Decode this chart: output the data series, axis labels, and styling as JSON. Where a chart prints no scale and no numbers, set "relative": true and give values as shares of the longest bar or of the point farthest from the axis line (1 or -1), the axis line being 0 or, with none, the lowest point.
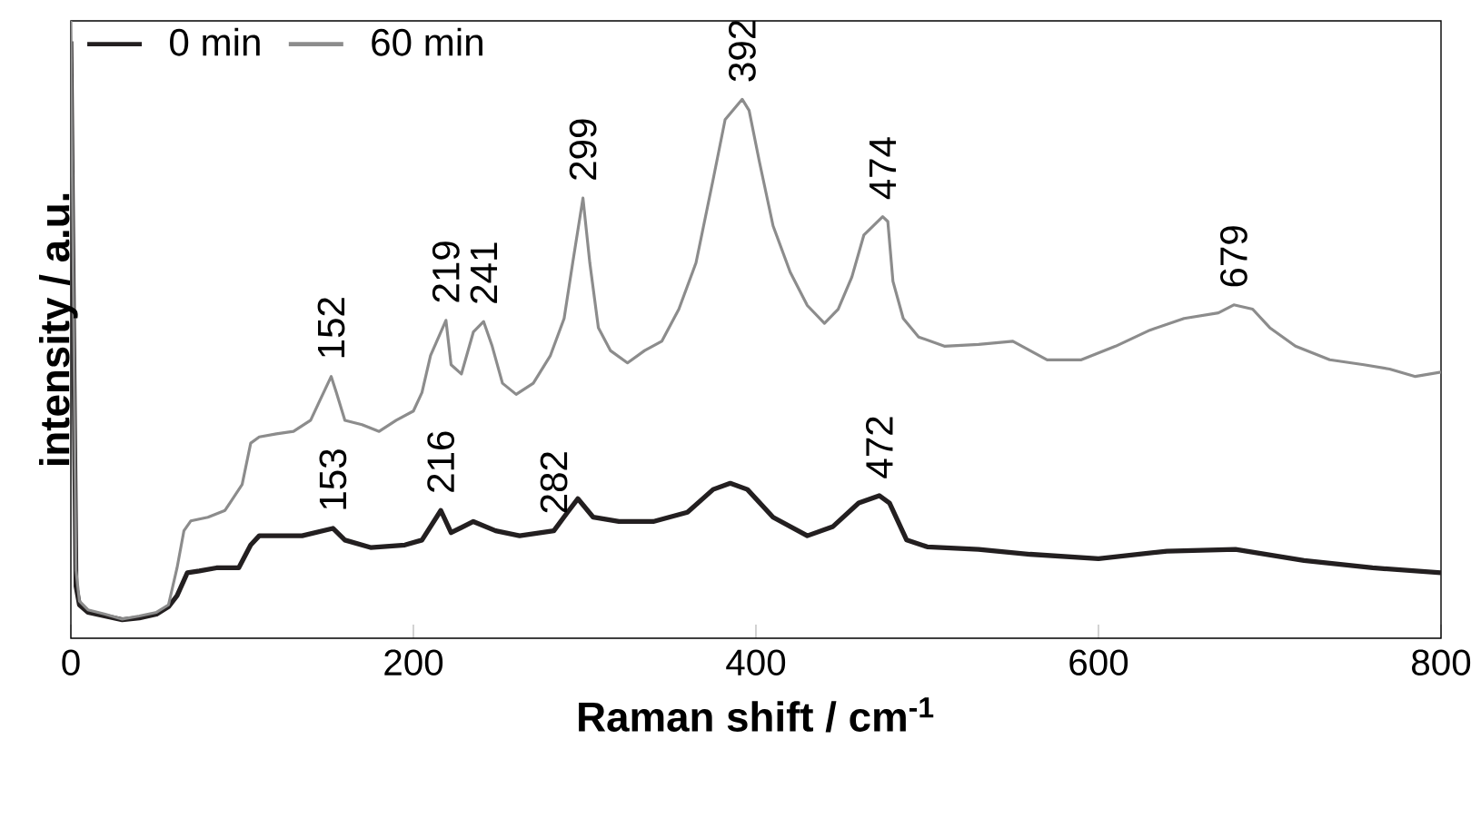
{
  "chart_data": {
    "type": "line",
    "relative": true,
    "xlabel": "Raman shift / cm$^{-1}$",
    "ylabel": "intensity / a.u.",
    "xlim": [
      0,
      800
    ],
    "xticks": [
      0,
      200,
      400,
      600,
      800
    ],
    "legend": "top left",
    "grid": false,
    "series": [
      {
        "name": "0 min",
        "color": "#231f20",
        "x": [
          0,
          3,
          5,
          10,
          20,
          30,
          40,
          50,
          57,
          62,
          68,
          75,
          85,
          98,
          105,
          110,
          120,
          135,
          153,
          160,
          175,
          195,
          205,
          216,
          222,
          235,
          248,
          262,
          282,
          290,
          296,
          305,
          320,
          340,
          360,
          375,
          385,
          395,
          410,
          430,
          445,
          460,
          472,
          478,
          488,
          500,
          530,
          560,
          600,
          640,
          680,
          720,
          760,
          800
        ],
        "values": [
          0.967,
          0.084,
          0.054,
          0.042,
          0.036,
          0.03,
          0.033,
          0.039,
          0.051,
          0.069,
          0.106,
          0.109,
          0.114,
          0.114,
          0.151,
          0.166,
          0.166,
          0.166,
          0.178,
          0.159,
          0.147,
          0.151,
          0.159,
          0.207,
          0.171,
          0.189,
          0.174,
          0.166,
          0.174,
          0.204,
          0.226,
          0.196,
          0.189,
          0.189,
          0.204,
          0.241,
          0.251,
          0.241,
          0.196,
          0.166,
          0.181,
          0.219,
          0.231,
          0.219,
          0.159,
          0.148,
          0.144,
          0.136,
          0.129,
          0.141,
          0.144,
          0.126,
          0.114,
          0.106
        ]
      },
      {
        "name": "60 min",
        "color": "#8c8c8c",
        "x": [
          0,
          3,
          5,
          10,
          20,
          30,
          40,
          50,
          57,
          62,
          66,
          70,
          80,
          90,
          100,
          105,
          110,
          120,
          130,
          140,
          145,
          152,
          155,
          160,
          170,
          180,
          190,
          200,
          205,
          210,
          219,
          222,
          228,
          235,
          241,
          246,
          252,
          260,
          270,
          280,
          288,
          293,
          299,
          303,
          308,
          315,
          325,
          335,
          345,
          355,
          365,
          375,
          382,
          392,
          396,
          402,
          410,
          420,
          430,
          440,
          448,
          456,
          463,
          474,
          477,
          480,
          486,
          495,
          510,
          530,
          550,
          570,
          590,
          610,
          630,
          650,
          670,
          679,
          690,
          700,
          715,
          735,
          755,
          770,
          785,
          800
        ],
        "values": [
          1.0,
          0.11,
          0.06,
          0.046,
          0.039,
          0.031,
          0.036,
          0.042,
          0.054,
          0.114,
          0.174,
          0.19,
          0.196,
          0.207,
          0.249,
          0.316,
          0.326,
          0.331,
          0.335,
          0.353,
          0.383,
          0.424,
          0.398,
          0.353,
          0.346,
          0.335,
          0.353,
          0.368,
          0.398,
          0.458,
          0.515,
          0.443,
          0.428,
          0.496,
          0.513,
          0.473,
          0.413,
          0.395,
          0.413,
          0.458,
          0.518,
          0.608,
          0.713,
          0.608,
          0.503,
          0.466,
          0.446,
          0.466,
          0.481,
          0.533,
          0.608,
          0.743,
          0.84,
          0.873,
          0.855,
          0.772,
          0.668,
          0.593,
          0.539,
          0.51,
          0.533,
          0.585,
          0.653,
          0.683,
          0.675,
          0.578,
          0.518,
          0.488,
          0.473,
          0.476,
          0.481,
          0.451,
          0.451,
          0.473,
          0.499,
          0.518,
          0.527,
          0.54,
          0.533,
          0.503,
          0.473,
          0.451,
          0.443,
          0.436,
          0.424,
          0.431
        ]
      }
    ],
    "annotations": [
      {
        "text": "152",
        "x": 152,
        "y": 0.424
      },
      {
        "text": "219",
        "x": 219,
        "y": 0.515
      },
      {
        "text": "241",
        "x": 241,
        "y": 0.513
      },
      {
        "text": "299",
        "x": 299,
        "y": 0.713
      },
      {
        "text": "392",
        "x": 392,
        "y": 0.873
      },
      {
        "text": "474",
        "x": 474,
        "y": 0.683
      },
      {
        "text": "679",
        "x": 679,
        "y": 0.54
      },
      {
        "text": "153",
        "x": 153,
        "y": 0.178
      },
      {
        "text": "216",
        "x": 216,
        "y": 0.207
      },
      {
        "text": "282",
        "x": 282,
        "y": 0.174
      },
      {
        "text": "472",
        "x": 472,
        "y": 0.231
      }
    ]
  }
}
